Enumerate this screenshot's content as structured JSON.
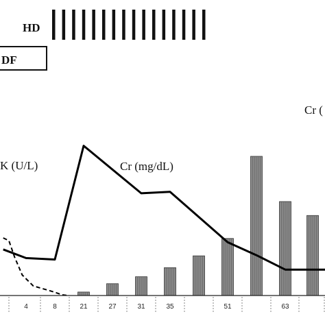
{
  "chart_data": {
    "type": "bar",
    "x_ticks": [
      "4",
      "8",
      "21",
      "27",
      "31",
      "35",
      "51",
      "63"
    ],
    "bar_series": {
      "name": "",
      "fill": "#8a8a8a",
      "x": [
        21,
        27,
        31,
        35,
        43,
        51,
        57,
        63,
        69
      ],
      "values": [
        5,
        17,
        27,
        40,
        57,
        82,
        200,
        135,
        115
      ]
    },
    "line_series": [
      {
        "name": "Cr (mg/dL)",
        "style": "solid",
        "x": [
          -2,
          4,
          8,
          21,
          31,
          35,
          51,
          57,
          63,
          69,
          74
        ],
        "values": [
          1.6,
          1.3,
          1.25,
          5.2,
          3.55,
          3.6,
          1.85,
          1.4,
          0.9,
          0.9,
          0.9
        ]
      },
      {
        "name": "CK (U/L)",
        "style": "dashed",
        "x": [
          -2,
          -0.5,
          1,
          3,
          5,
          8,
          11,
          14
        ],
        "values": [
          2.1,
          2.0,
          1.4,
          0.75,
          0.35,
          0.12,
          0.03,
          0.0
        ]
      }
    ],
    "annotations": {
      "hd_label": "HD",
      "df_label": "DF",
      "ck_label": "K (U/L)",
      "cr_label": "Cr (mg/dL)",
      "cr_right_label": "Cr ("
    },
    "hd_sessions": 16,
    "colors": {
      "line": "#000000",
      "bar": "#8a8a8a"
    },
    "grid": false,
    "legend": "none"
  }
}
